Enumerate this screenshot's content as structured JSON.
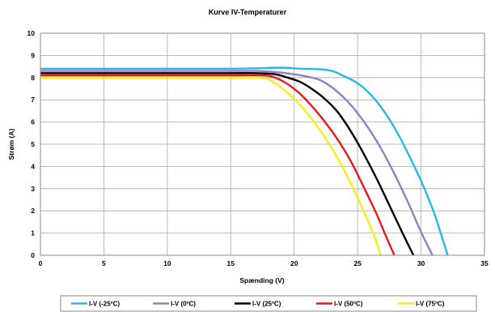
{
  "chart_data": {
    "type": "line",
    "title": "Kurve IV-Temperaturer",
    "xlabel": "Spænding (V)",
    "ylabel": "Strøm (A)",
    "xlim": [
      0,
      35
    ],
    "ylim": [
      0,
      10
    ],
    "xticks": [
      "0",
      "5",
      "10",
      "15",
      "20",
      "25",
      "30",
      "35"
    ],
    "yticks": [
      "0",
      "1",
      "2",
      "3",
      "4",
      "5",
      "6",
      "7",
      "8",
      "9",
      "10"
    ],
    "grid": true,
    "legend_position": "bottom",
    "series": [
      {
        "name": "I-V (-25ºC)",
        "color": "#29b6e8",
        "points": [
          [
            0,
            8.4
          ],
          [
            5,
            8.4
          ],
          [
            10,
            8.4
          ],
          [
            15,
            8.4
          ],
          [
            17,
            8.42
          ],
          [
            19,
            8.45
          ],
          [
            20.5,
            8.4
          ],
          [
            22,
            8.38
          ],
          [
            23,
            8.3
          ],
          [
            24,
            8.05
          ],
          [
            25,
            7.75
          ],
          [
            26,
            7.25
          ],
          [
            27,
            6.55
          ],
          [
            28,
            5.65
          ],
          [
            29,
            4.55
          ],
          [
            30,
            3.35
          ],
          [
            31,
            1.95
          ],
          [
            31.6,
            0.9
          ],
          [
            32.1,
            0
          ]
        ]
      },
      {
        "name": "I-V (0ºC)",
        "color": "#8f7fc4",
        "points": [
          [
            0,
            8.3
          ],
          [
            5,
            8.3
          ],
          [
            10,
            8.3
          ],
          [
            15,
            8.3
          ],
          [
            17,
            8.3
          ],
          [
            18.5,
            8.25
          ],
          [
            20,
            8.15
          ],
          [
            21,
            8.05
          ],
          [
            22,
            7.9
          ],
          [
            23,
            7.55
          ],
          [
            24,
            7.05
          ],
          [
            25,
            6.4
          ],
          [
            26,
            5.6
          ],
          [
            27,
            4.65
          ],
          [
            28,
            3.55
          ],
          [
            29,
            2.35
          ],
          [
            30,
            1.05
          ],
          [
            30.9,
            0
          ]
        ]
      },
      {
        "name": "I-V (25ºC)",
        "color": "#000000",
        "points": [
          [
            0,
            8.2
          ],
          [
            5,
            8.2
          ],
          [
            10,
            8.2
          ],
          [
            15,
            8.2
          ],
          [
            17,
            8.2
          ],
          [
            18.5,
            8.15
          ],
          [
            19.5,
            8.0
          ],
          [
            20.5,
            7.8
          ],
          [
            21.5,
            7.45
          ],
          [
            22.5,
            7.0
          ],
          [
            23.5,
            6.4
          ],
          [
            24.5,
            5.55
          ],
          [
            25.5,
            4.55
          ],
          [
            26.5,
            3.45
          ],
          [
            27.5,
            2.25
          ],
          [
            28.5,
            1.05
          ],
          [
            29.4,
            0
          ]
        ]
      },
      {
        "name": "I-V (50ºC)",
        "color": "#e8191c",
        "points": [
          [
            0,
            8.1
          ],
          [
            5,
            8.1
          ],
          [
            10,
            8.1
          ],
          [
            15,
            8.1
          ],
          [
            17.5,
            8.1
          ],
          [
            18.5,
            8.0
          ],
          [
            19.5,
            7.7
          ],
          [
            20.5,
            7.25
          ],
          [
            21.5,
            6.65
          ],
          [
            22.5,
            5.95
          ],
          [
            23.5,
            5.15
          ],
          [
            24.5,
            4.2
          ],
          [
            25.5,
            3.05
          ],
          [
            26.5,
            1.85
          ],
          [
            27.2,
            0.9
          ],
          [
            27.9,
            0
          ]
        ]
      },
      {
        "name": "I-V (75ºC)",
        "color": "#f5ef18",
        "points": [
          [
            0,
            8.0
          ],
          [
            5,
            8.0
          ],
          [
            10,
            8.0
          ],
          [
            15,
            8.0
          ],
          [
            17.5,
            8.0
          ],
          [
            18.5,
            7.75
          ],
          [
            19.5,
            7.3
          ],
          [
            20.5,
            6.75
          ],
          [
            21.5,
            6.05
          ],
          [
            22.5,
            5.25
          ],
          [
            23.5,
            4.3
          ],
          [
            24.5,
            3.2
          ],
          [
            25.5,
            1.95
          ],
          [
            26.3,
            0.9
          ],
          [
            26.8,
            0
          ]
        ]
      }
    ]
  }
}
